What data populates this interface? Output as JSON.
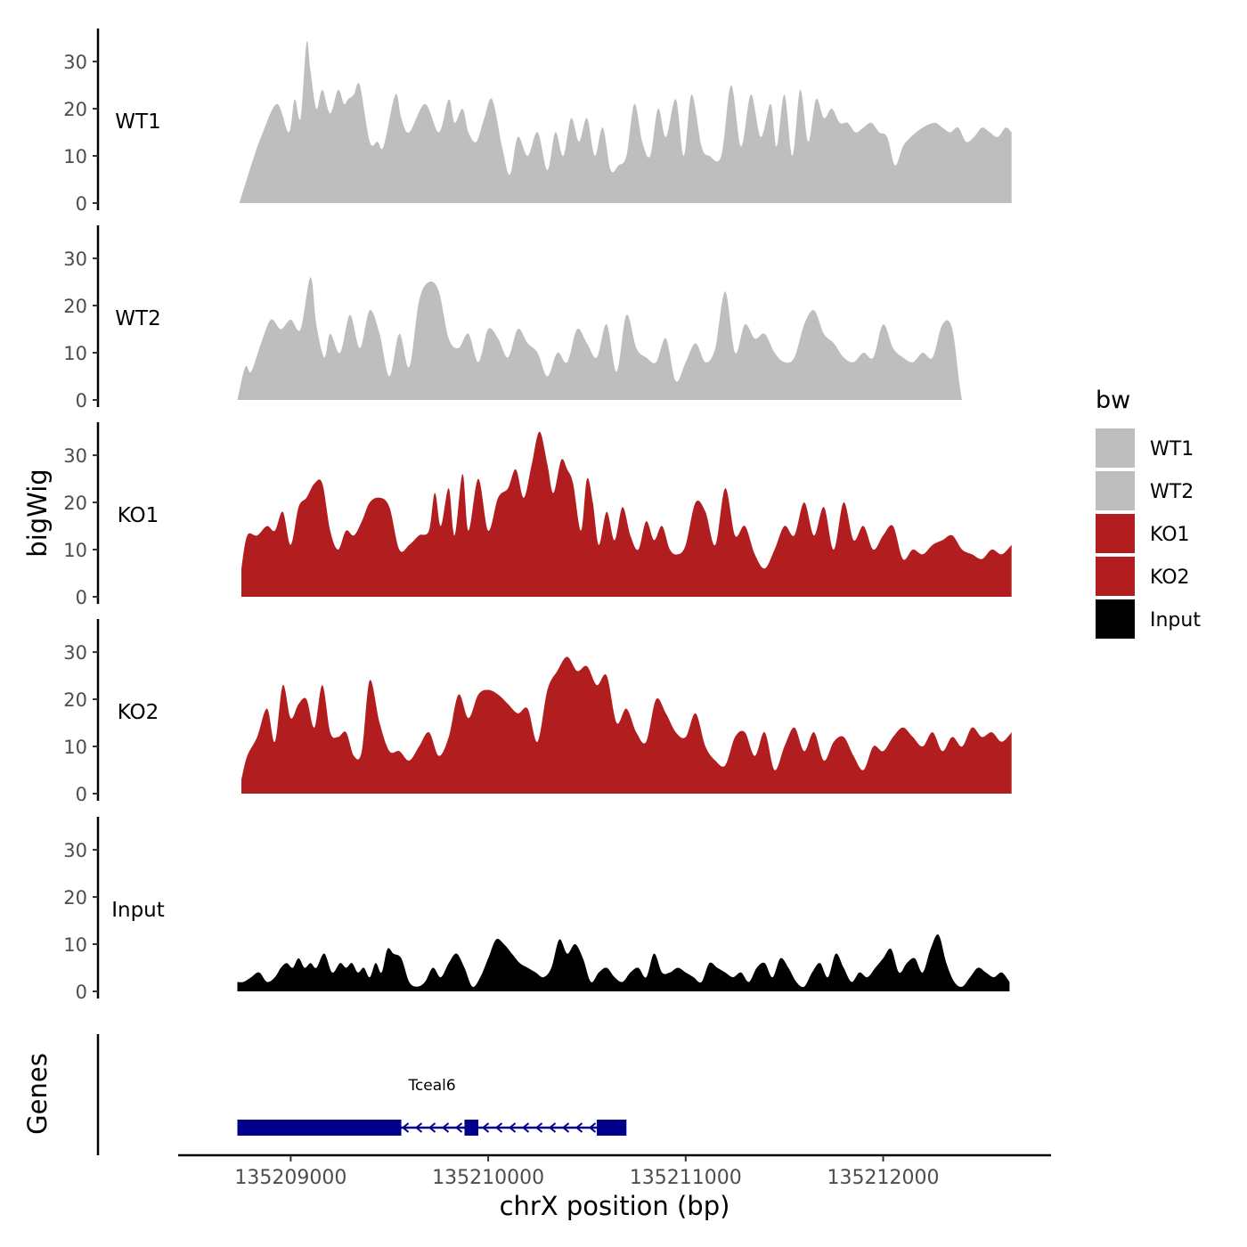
{
  "chart_data": {
    "type": "area",
    "title": "",
    "ylabel": "bigWig",
    "xlabel": "chrX position (bp)",
    "xlim": [
      135208430,
      135212850
    ],
    "ylim": [
      0,
      37
    ],
    "y_ticks": [
      0,
      10,
      20,
      30
    ],
    "x_ticks": [
      135209000,
      135210000,
      135211000,
      135212000
    ],
    "x_tick_labels": [
      "135209000",
      "135210000",
      "135211000",
      "135212000"
    ],
    "legend": {
      "title": "bw",
      "position": "right",
      "entries": [
        {
          "label": "WT1",
          "color": "#bebebe"
        },
        {
          "label": "WT2",
          "color": "#bebebe"
        },
        {
          "label": "KO1",
          "color": "#b21e20"
        },
        {
          "label": "KO2",
          "color": "#b21e20"
        },
        {
          "label": "Input",
          "color": "#000000"
        }
      ]
    },
    "tracks": [
      {
        "name": "WT1",
        "color": "#bebebe",
        "x": [
          135208740,
          135208800,
          135208850,
          135208930,
          135208990,
          135209020,
          135209050,
          135209080,
          135209100,
          135209130,
          135209160,
          135209200,
          135209240,
          135209270,
          135209290,
          135209320,
          135209350,
          135209400,
          135209440,
          135209470,
          135209530,
          135209560,
          135209600,
          135209680,
          135209750,
          135209800,
          135209830,
          135209870,
          135209900,
          135209940,
          135209980,
          135210020,
          135210070,
          135210110,
          135210150,
          135210200,
          135210250,
          135210300,
          135210340,
          135210380,
          135210420,
          135210460,
          135210500,
          135210540,
          135210580,
          135210620,
          135210660,
          135210700,
          135210740,
          135210780,
          135210820,
          135210860,
          135210900,
          135210950,
          135210990,
          135211030,
          135211080,
          135211120,
          135211180,
          135211230,
          135211280,
          135211330,
          135211380,
          135211430,
          135211460,
          135211500,
          135211540,
          135211580,
          135211620,
          135211660,
          135211700,
          135211740,
          135211780,
          135211820,
          135211860,
          135211900,
          135211940,
          135211980,
          135212020,
          135212060,
          135212100,
          135212140,
          135212200,
          135212260,
          135212300,
          135212340,
          135212380,
          135212420,
          135212460,
          135212500,
          135212540,
          135212580,
          135212620,
          135212650
        ],
        "values": [
          0,
          8,
          14,
          21,
          15,
          22,
          18,
          34,
          28,
          20,
          24,
          19,
          24,
          21,
          22,
          23,
          25,
          13,
          13,
          12,
          23,
          18,
          15,
          21,
          15,
          22,
          17,
          20,
          15,
          13,
          18,
          22,
          12,
          6,
          14,
          10,
          15,
          7,
          15,
          10,
          18,
          13,
          18,
          10,
          16,
          7,
          8,
          10,
          21,
          13,
          10,
          20,
          14,
          22,
          10,
          23,
          12,
          10,
          10,
          25,
          12,
          23,
          14,
          21,
          12,
          23,
          10,
          24,
          13,
          22,
          18,
          20,
          17,
          17,
          15,
          16,
          17,
          15,
          14,
          8,
          12,
          14,
          16,
          17,
          16,
          15,
          16,
          13,
          14,
          16,
          15,
          14,
          16,
          15
        ]
      },
      {
        "name": "WT2",
        "color": "#bebebe",
        "x": [
          135208730,
          135208770,
          135208800,
          135208850,
          135208900,
          135208950,
          135209000,
          135209050,
          135209100,
          135209130,
          135209170,
          135209200,
          135209250,
          135209300,
          135209350,
          135209400,
          135209450,
          135209500,
          135209550,
          135209600,
          135209650,
          135209700,
          135209750,
          135209800,
          135209850,
          135209900,
          135209950,
          135210000,
          135210050,
          135210100,
          135210150,
          135210200,
          135210250,
          135210300,
          135210350,
          135210400,
          135210450,
          135210500,
          135210550,
          135210600,
          135210650,
          135210700,
          135210750,
          135210800,
          135210850,
          135210900,
          135210950,
          135211000,
          135211050,
          135211100,
          135211150,
          135211200,
          135211250,
          135211300,
          135211350,
          135211400,
          135211450,
          135211500,
          135211550,
          135211600,
          135211650,
          135211700,
          135211750,
          135211800,
          135211850,
          135211900,
          135211950,
          135212000,
          135212050,
          135212100,
          135212150,
          135212200,
          135212250,
          135212300,
          135212350,
          135212400,
          135212450,
          135212500,
          135212550,
          135212600,
          135212650
        ],
        "values": [
          0,
          7,
          6,
          12,
          17,
          15,
          17,
          15,
          26,
          16,
          9,
          14,
          10,
          18,
          11,
          19,
          14,
          5,
          14,
          7,
          21,
          25,
          23,
          13,
          11,
          14,
          8,
          15,
          13,
          9,
          15,
          12,
          10,
          5,
          10,
          8,
          15,
          12,
          9,
          16,
          6,
          18,
          11,
          9,
          8,
          13,
          4,
          8,
          12,
          8,
          11,
          23,
          10,
          16,
          13,
          14,
          10,
          8,
          9,
          16,
          19,
          14,
          12,
          9,
          8,
          10,
          9,
          16,
          11,
          9,
          8,
          10,
          9,
          16,
          15,
          0,
          0,
          0,
          0,
          0,
          0
        ]
      },
      {
        "name": "KO1",
        "color": "#b21e20",
        "x": [
          135208750,
          135208780,
          135208830,
          135208880,
          135208920,
          135208960,
          135209000,
          135209040,
          135209080,
          135209120,
          135209160,
          135209200,
          135209240,
          135209280,
          135209320,
          135209360,
          135209400,
          135209450,
          135209500,
          135209550,
          135209600,
          135209650,
          135209700,
          135209730,
          135209760,
          135209800,
          135209830,
          135209870,
          135209900,
          135209950,
          135210000,
          135210050,
          135210100,
          135210140,
          135210180,
          135210220,
          135210260,
          135210300,
          135210330,
          135210370,
          135210400,
          135210430,
          135210470,
          135210500,
          135210530,
          135210560,
          135210600,
          135210640,
          135210680,
          135210720,
          135210760,
          135210800,
          135210840,
          135210880,
          135210920,
          135210960,
          135211000,
          135211050,
          135211100,
          135211150,
          135211200,
          135211250,
          135211300,
          135211350,
          135211400,
          135211450,
          135211500,
          135211550,
          135211600,
          135211650,
          135211700,
          135211750,
          135211800,
          135211850,
          135211900,
          135211950,
          135212000,
          135212050,
          135212100,
          135212150,
          135212200,
          135212250,
          135212300,
          135212350,
          135212400,
          135212450,
          135212500,
          135212550,
          135212600,
          135212650
        ],
        "values": [
          6,
          13,
          13,
          15,
          14,
          18,
          11,
          19,
          21,
          24,
          24,
          14,
          10,
          14,
          13,
          16,
          20,
          21,
          19,
          10,
          11,
          13,
          14,
          22,
          15,
          23,
          13,
          26,
          14,
          25,
          14,
          21,
          23,
          27,
          21,
          28,
          35,
          28,
          22,
          29,
          27,
          24,
          14,
          25,
          20,
          11,
          18,
          12,
          19,
          13,
          10,
          16,
          12,
          15,
          10,
          9,
          11,
          20,
          18,
          11,
          23,
          13,
          15,
          9,
          6,
          10,
          15,
          13,
          20,
          13,
          19,
          10,
          20,
          12,
          15,
          10,
          13,
          15,
          8,
          10,
          9,
          11,
          12,
          13,
          10,
          9,
          8,
          10,
          9,
          11
        ]
      },
      {
        "name": "KO2",
        "color": "#b21e20",
        "x": [
          135208750,
          135208780,
          135208830,
          135208880,
          135208920,
          135208960,
          135209000,
          135209040,
          135209080,
          135209120,
          135209160,
          135209200,
          135209240,
          135209280,
          135209320,
          135209360,
          135209400,
          135209450,
          135209500,
          135209550,
          135209600,
          135209650,
          135209700,
          135209750,
          135209800,
          135209850,
          135209900,
          135209950,
          135210000,
          135210050,
          135210100,
          135210150,
          135210200,
          135210250,
          135210300,
          135210350,
          135210400,
          135210450,
          135210500,
          135210550,
          135210600,
          135210650,
          135210700,
          135210750,
          135210800,
          135210850,
          135210900,
          135210950,
          135211000,
          135211050,
          135211100,
          135211150,
          135211200,
          135211250,
          135211300,
          135211350,
          135211400,
          135211450,
          135211500,
          135211550,
          135211600,
          135211650,
          135211700,
          135211750,
          135211800,
          135211850,
          135211900,
          135211950,
          135212000,
          135212050,
          135212100,
          135212150,
          135212200,
          135212250,
          135212300,
          135212350,
          135212400,
          135212450,
          135212500,
          135212550,
          135212600,
          135212650
        ],
        "values": [
          3,
          8,
          12,
          18,
          11,
          23,
          16,
          19,
          20,
          14,
          23,
          13,
          12,
          13,
          8,
          9,
          24,
          15,
          9,
          9,
          7,
          10,
          13,
          8,
          12,
          21,
          16,
          21,
          22,
          21,
          19,
          17,
          18,
          11,
          22,
          26,
          29,
          26,
          27,
          23,
          25,
          15,
          18,
          13,
          11,
          20,
          17,
          13,
          12,
          17,
          10,
          7,
          6,
          12,
          13,
          8,
          13,
          5,
          10,
          14,
          9,
          13,
          7,
          11,
          12,
          8,
          5,
          10,
          9,
          12,
          14,
          12,
          10,
          13,
          9,
          12,
          10,
          14,
          12,
          13,
          11,
          13
        ]
      },
      {
        "name": "Input",
        "color": "#000000",
        "x": [
          135208730,
          135208760,
          135208800,
          135208840,
          135208880,
          135208920,
          135208950,
          135208980,
          135209010,
          135209040,
          135209070,
          135209100,
          135209130,
          135209170,
          135209210,
          135209250,
          135209280,
          135209310,
          135209340,
          135209370,
          135209400,
          135209430,
          135209460,
          135209490,
          135209520,
          135209560,
          135209600,
          135209640,
          135209680,
          135209720,
          135209760,
          135209800,
          135209840,
          135209880,
          135209920,
          135209960,
          135210000,
          135210040,
          135210080,
          135210120,
          135210160,
          135210200,
          135210240,
          135210280,
          135210320,
          135210360,
          135210400,
          135210440,
          135210480,
          135210520,
          135210560,
          135210600,
          135210640,
          135210680,
          135210720,
          135210760,
          135210800,
          135210840,
          135210880,
          135210920,
          135210960,
          135211000,
          135211040,
          135211080,
          135211120,
          135211160,
          135211200,
          135211240,
          135211280,
          135211320,
          135211360,
          135211400,
          135211440,
          135211480,
          135211520,
          135211560,
          135211600,
          135211640,
          135211680,
          135211720,
          135211760,
          135211800,
          135211840,
          135211880,
          135211920,
          135211960,
          135212000,
          135212040,
          135212080,
          135212120,
          135212160,
          135212200,
          135212240,
          135212280,
          135212320,
          135212360,
          135212400,
          135212440,
          135212480,
          135212520,
          135212560,
          135212600,
          135212640
        ],
        "values": [
          2,
          2,
          3,
          4,
          2,
          3,
          5,
          6,
          5,
          7,
          5,
          6,
          5,
          8,
          4,
          6,
          5,
          6,
          4,
          5,
          3,
          6,
          4,
          9,
          8,
          7,
          2,
          1,
          2,
          5,
          3,
          6,
          8,
          5,
          1,
          3,
          7,
          11,
          10,
          8,
          6,
          5,
          4,
          3,
          5,
          11,
          8,
          10,
          7,
          2,
          4,
          5,
          3,
          2,
          4,
          5,
          3,
          8,
          4,
          4,
          5,
          4,
          3,
          2,
          6,
          5,
          4,
          3,
          4,
          2,
          5,
          6,
          3,
          7,
          5,
          2,
          1,
          4,
          6,
          3,
          8,
          5,
          2,
          4,
          3,
          5,
          7,
          9,
          4,
          6,
          7,
          4,
          9,
          12,
          6,
          2,
          1,
          3,
          5,
          4,
          3,
          4,
          2
        ]
      }
    ],
    "genes": [
      {
        "name": "Tceal6",
        "strand": "-",
        "start": 135208730,
        "end": 135210720,
        "exons": [
          [
            135208730,
            135209560
          ],
          [
            135209880,
            135209950
          ],
          [
            135210550,
            135210700
          ]
        ]
      }
    ]
  }
}
